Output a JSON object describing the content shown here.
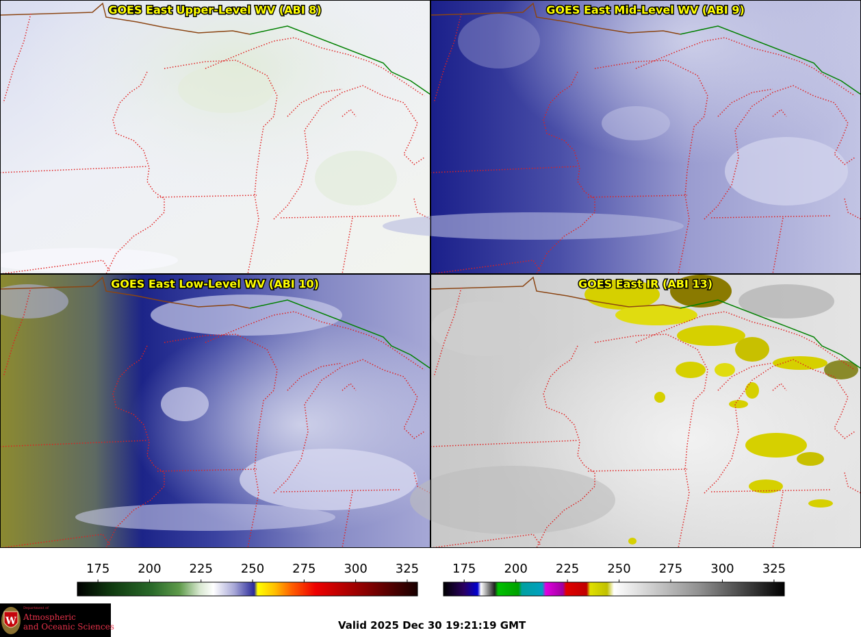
{
  "panels": [
    {
      "title": "GOES East Upper-Level WV (ABI 8)",
      "colormap": "upper-wv"
    },
    {
      "title": "GOES East Mid-Level WV (ABI 9)",
      "colormap": "mid-wv"
    },
    {
      "title": "GOES East Low-Level WV (ABI 10)",
      "colormap": "low-wv"
    },
    {
      "title": "GOES East IR (ABI 13)",
      "colormap": "ir"
    }
  ],
  "colorbars": [
    {
      "name": "wv-colorbar",
      "ticks": [
        "175",
        "200",
        "225",
        "250",
        "275",
        "300",
        "325"
      ]
    },
    {
      "name": "ir-colorbar",
      "ticks": [
        "175",
        "200",
        "225",
        "250",
        "275",
        "300",
        "325"
      ]
    }
  ],
  "valid_time": "Valid 2025 Dec 30 19:21:19 GMT",
  "logo": {
    "line1": "Department of",
    "line2": "Atmospheric",
    "line3": "and Oceanic Sciences"
  },
  "colors": {
    "state_borders": "#e02020",
    "international_border": "#008000",
    "coastline": "#8b4513",
    "title_text": "#ffff00"
  }
}
